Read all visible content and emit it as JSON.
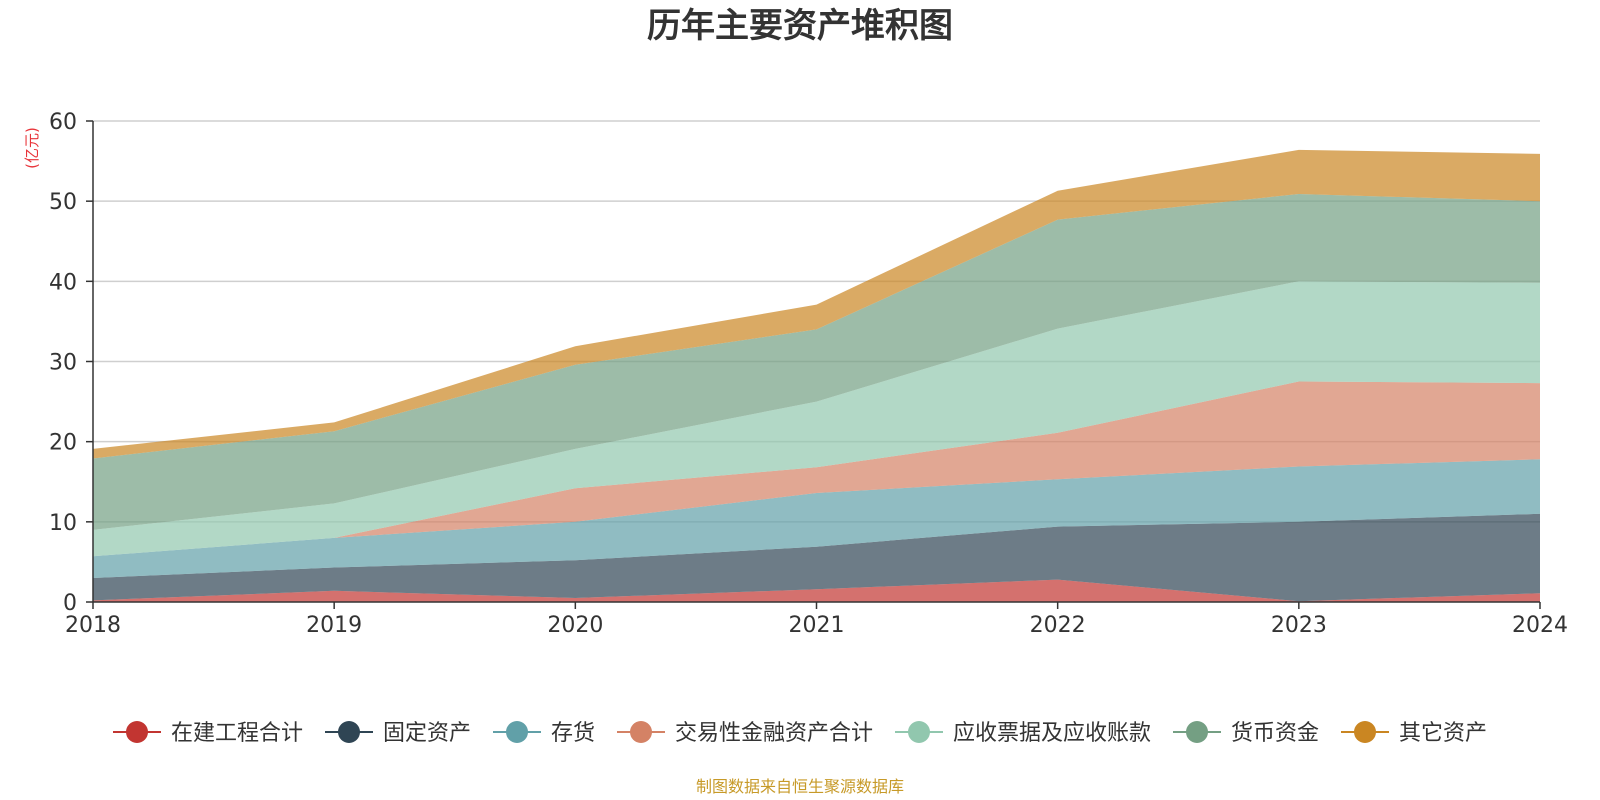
{
  "chart_data": {
    "type": "area",
    "stacked": true,
    "title": "历年主要资产堆积图",
    "unit_label": "(亿元)",
    "x": [
      "2018",
      "2019",
      "2020",
      "2021",
      "2022",
      "2023",
      "2024"
    ],
    "ylim": [
      0,
      60
    ],
    "yticks": [
      "0",
      "10",
      "20",
      "30",
      "40",
      "50",
      "60"
    ],
    "grid": true,
    "legend_position": "bottom",
    "series": [
      {
        "name": "在建工程合计",
        "color": "#c23531",
        "values": [
          0.2,
          1.4,
          0.5,
          1.6,
          2.8,
          0.1,
          1.1
        ]
      },
      {
        "name": "固定资产",
        "color": "#2f4554",
        "values": [
          2.8,
          2.9,
          4.7,
          5.3,
          6.6,
          9.9,
          9.9
        ]
      },
      {
        "name": "存货",
        "color": "#61a0a8",
        "values": [
          2.7,
          3.7,
          4.8,
          6.7,
          5.9,
          6.9,
          6.8
        ]
      },
      {
        "name": "交易性金融资产合计",
        "color": "#d48265",
        "values": [
          0,
          0,
          4.2,
          3.2,
          5.8,
          10.6,
          9.5
        ]
      },
      {
        "name": "应收票据及应收账款",
        "color": "#91c7ae",
        "values": [
          3.3,
          4.3,
          4.9,
          8.2,
          13.0,
          12.5,
          12.5
        ]
      },
      {
        "name": "货币资金",
        "color": "#749f83",
        "values": [
          8.9,
          9.0,
          10.5,
          9.0,
          13.6,
          10.9,
          10.2
        ]
      },
      {
        "name": "其它资产",
        "color": "#ca8622",
        "values": [
          1.2,
          1.1,
          2.3,
          3.1,
          3.6,
          5.5,
          5.9
        ]
      }
    ],
    "source": "制图数据来自恒生聚源数据库"
  }
}
